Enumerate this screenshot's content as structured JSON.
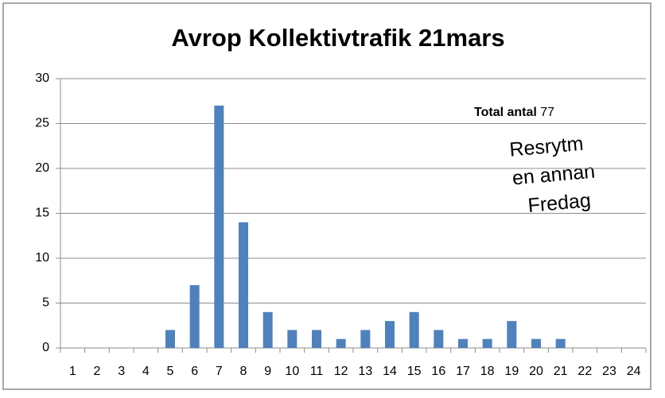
{
  "chart_data": {
    "type": "bar",
    "title": "Avrop Kollektivtrafik 21mars",
    "categories": [
      "1",
      "2",
      "3",
      "4",
      "5",
      "6",
      "7",
      "8",
      "9",
      "10",
      "11",
      "12",
      "13",
      "14",
      "15",
      "16",
      "17",
      "18",
      "19",
      "20",
      "21",
      "22",
      "23",
      "24"
    ],
    "values": [
      0,
      0,
      0,
      0,
      2,
      7,
      27,
      14,
      4,
      2,
      2,
      1,
      2,
      3,
      4,
      2,
      1,
      1,
      3,
      1,
      1,
      0,
      0,
      0
    ],
    "color": "#4f81bd",
    "ylim": [
      0,
      30
    ],
    "yticks": [
      0,
      5,
      10,
      15,
      20,
      25,
      30
    ],
    "grid": true,
    "total_label": "Total antal",
    "total_value": 77,
    "note_lines": [
      "Resrytm",
      "en annan",
      "Fredag"
    ]
  }
}
